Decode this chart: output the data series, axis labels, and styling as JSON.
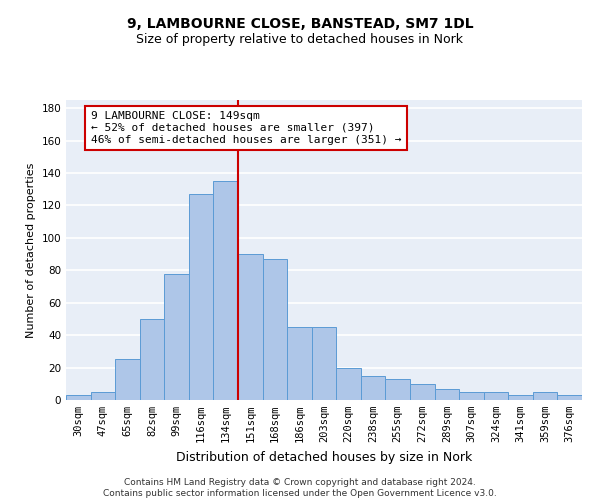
{
  "title": "9, LAMBOURNE CLOSE, BANSTEAD, SM7 1DL",
  "subtitle": "Size of property relative to detached houses in Nork",
  "xlabel": "Distribution of detached houses by size in Nork",
  "ylabel": "Number of detached properties",
  "categories": [
    "30sqm",
    "47sqm",
    "65sqm",
    "82sqm",
    "99sqm",
    "116sqm",
    "134sqm",
    "151sqm",
    "168sqm",
    "186sqm",
    "203sqm",
    "220sqm",
    "238sqm",
    "255sqm",
    "272sqm",
    "289sqm",
    "307sqm",
    "324sqm",
    "341sqm",
    "359sqm",
    "376sqm"
  ],
  "values": [
    3,
    5,
    25,
    50,
    78,
    127,
    135,
    90,
    87,
    45,
    45,
    20,
    15,
    13,
    10,
    7,
    5,
    5,
    3,
    5,
    3
  ],
  "bar_color": "#aec6e8",
  "bar_edge_color": "#5b9bd5",
  "vline_x_index": 6.5,
  "vline_color": "#cc0000",
  "annotation_text": "9 LAMBOURNE CLOSE: 149sqm\n← 52% of detached houses are smaller (397)\n46% of semi-detached houses are larger (351) →",
  "annotation_box_color": "#ffffff",
  "annotation_box_edge_color": "#cc0000",
  "ylim": [
    0,
    185
  ],
  "yticks": [
    0,
    20,
    40,
    60,
    80,
    100,
    120,
    140,
    160,
    180
  ],
  "footer": "Contains HM Land Registry data © Crown copyright and database right 2024.\nContains public sector information licensed under the Open Government Licence v3.0.",
  "background_color": "#e8eef7",
  "grid_color": "#ffffff",
  "title_fontsize": 10,
  "subtitle_fontsize": 9,
  "xlabel_fontsize": 9,
  "ylabel_fontsize": 8,
  "tick_fontsize": 7.5,
  "annotation_fontsize": 8,
  "footer_fontsize": 6.5
}
